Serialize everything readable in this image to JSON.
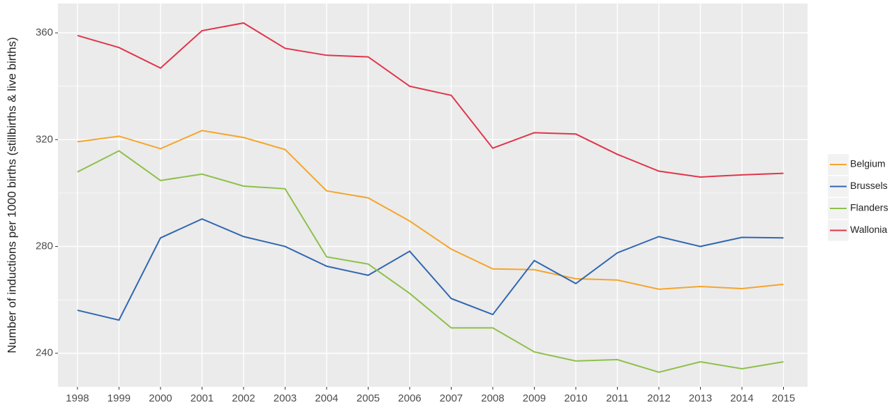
{
  "chart_data": {
    "type": "line",
    "y_label": "Number of inductions per 1000 births (stillbirths & live births)",
    "x": [
      1998,
      1999,
      2000,
      2001,
      2002,
      2003,
      2004,
      2005,
      2006,
      2007,
      2008,
      2009,
      2010,
      2011,
      2012,
      2013,
      2014,
      2015
    ],
    "series": [
      {
        "name": "Belgium",
        "color": "#F5A52A",
        "values": [
          319.2,
          321.3,
          316.6,
          323.4,
          320.8,
          316.3,
          300.8,
          298.2,
          289.5,
          279,
          271.6,
          271.3,
          267.9,
          267.4,
          264,
          265,
          264.2,
          265.8
        ]
      },
      {
        "name": "Brussels",
        "color": "#2F67B1",
        "values": [
          256.1,
          252.4,
          283.2,
          290.3,
          283.7,
          280,
          272.6,
          269.2,
          278.2,
          260.5,
          254.5,
          274.7,
          266.1,
          277.6,
          283.7,
          280,
          283.4,
          283.2
        ]
      },
      {
        "name": "Flanders",
        "color": "#8DC04A",
        "values": [
          307.9,
          315.8,
          304.7,
          307.1,
          302.6,
          301.6,
          276.1,
          273.4,
          262.4,
          249.5,
          249.5,
          240.5,
          237.1,
          237.6,
          232.9,
          236.8,
          234.2,
          236.8
        ]
      },
      {
        "name": "Wallonia",
        "color": "#E0354A",
        "values": [
          359,
          354.5,
          346.8,
          360.8,
          363.7,
          354.2,
          351.6,
          351,
          340,
          336.6,
          316.8,
          322.6,
          322.1,
          314.5,
          308.2,
          306,
          306.8,
          307.4
        ]
      }
    ],
    "xlim": [
      1997.53,
      2015.58
    ],
    "xticks": [
      1998,
      1999,
      2000,
      2001,
      2002,
      2003,
      2004,
      2005,
      2006,
      2007,
      2008,
      2009,
      2010,
      2011,
      2012,
      2013,
      2014,
      2015
    ],
    "ylim": [
      227.4,
      371
    ],
    "yticks": [
      240,
      280,
      320,
      360
    ],
    "minor_yticks": [
      260,
      300,
      340
    ],
    "grid": true,
    "legend": "right"
  }
}
